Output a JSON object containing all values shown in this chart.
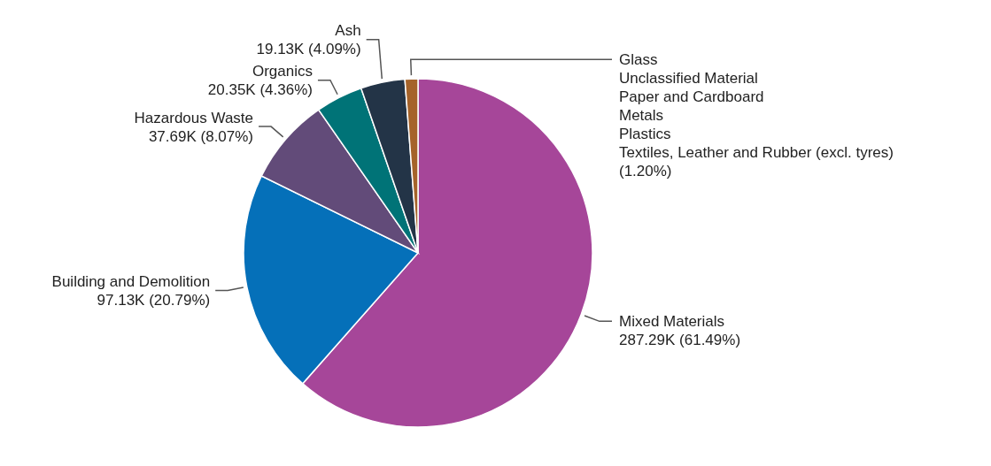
{
  "chart_data": {
    "type": "pie",
    "categories": [
      "Mixed Materials",
      "Building and Demolition",
      "Hazardous Waste",
      "Organics",
      "Ash",
      "Glass\nUnclassified Material\nPaper and Cardboard\nMetals\nPlastics\nTextiles, Leather and Rubber (excl. tyres)"
    ],
    "values": [
      61.49,
      20.79,
      8.07,
      4.36,
      4.09,
      1.2
    ],
    "colors": [
      "#a64699",
      "#0570b9",
      "#624b79",
      "#007377",
      "#233447",
      "#a5632a"
    ],
    "value_labels": [
      "287.29K (61.49%)",
      "97.13K (20.79%)",
      "37.69K (8.07%)",
      "20.35K (4.36%)",
      "19.13K (4.09%)",
      "(1.20%)"
    ]
  }
}
